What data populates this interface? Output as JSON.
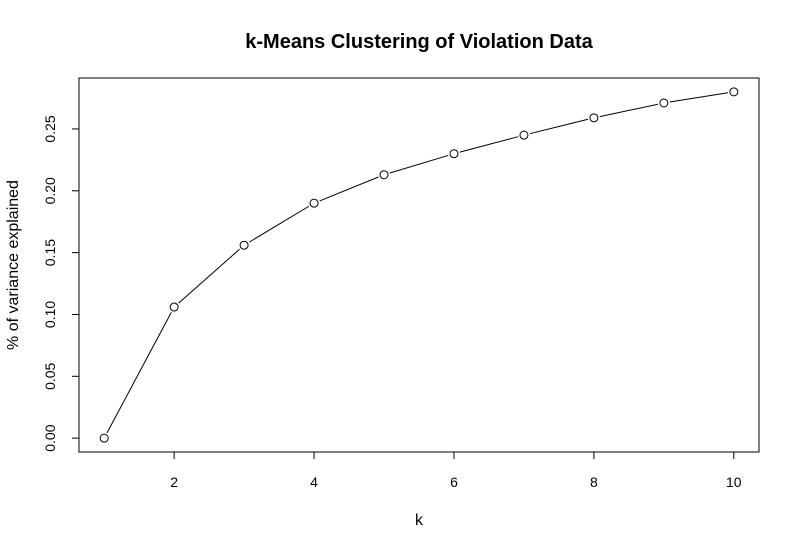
{
  "chart_data": {
    "type": "line",
    "title": "k-Means Clustering of Violation Data",
    "xlabel": "k",
    "ylabel": "% of variance explained",
    "x": [
      1,
      2,
      3,
      4,
      5,
      6,
      7,
      8,
      9,
      10
    ],
    "y": [
      0.0,
      0.106,
      0.156,
      0.19,
      0.213,
      0.23,
      0.245,
      0.259,
      0.271,
      0.28
    ],
    "xticks": [
      "2",
      "4",
      "6",
      "8",
      "10"
    ],
    "yticks": [
      "0.00",
      "0.05",
      "0.10",
      "0.15",
      "0.20",
      "0.25"
    ],
    "xlim": [
      0.64,
      10.36
    ],
    "ylim": [
      -0.0112,
      0.2912
    ],
    "marker": "open-circle",
    "grid": false,
    "legend": "none",
    "colors": {
      "line": "#000000",
      "marker_fill": "#ffffff",
      "marker_stroke": "#000000"
    }
  }
}
